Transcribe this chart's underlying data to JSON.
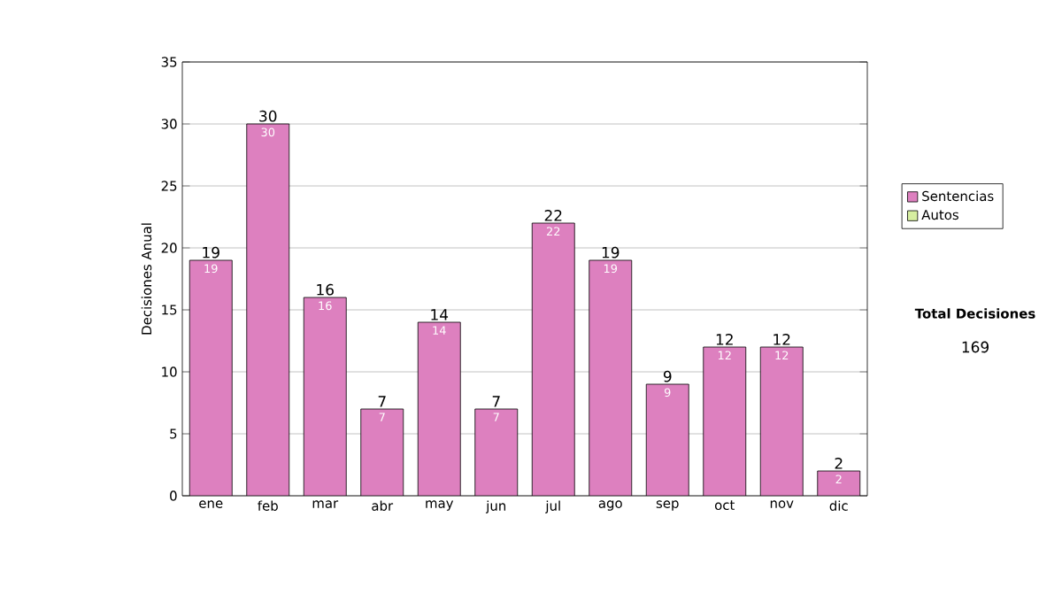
{
  "chart_data": {
    "type": "bar",
    "stacked": true,
    "ylabel": "Decisiones Anual",
    "categories": [
      "ene",
      "feb",
      "mar",
      "abr",
      "may",
      "jun",
      "jul",
      "ago",
      "sep",
      "oct",
      "nov",
      "dic"
    ],
    "series": [
      {
        "name": "Sentencias",
        "color": "#dd80bf",
        "values": [
          19,
          30,
          16,
          7,
          14,
          7,
          22,
          19,
          9,
          12,
          12,
          2
        ]
      },
      {
        "name": "Autos",
        "color": "#d6eea0",
        "values": [
          null,
          null,
          null,
          null,
          null,
          null,
          null,
          null,
          null,
          null,
          null,
          null
        ]
      }
    ],
    "totals": [
      "19",
      "30",
      "16",
      "7",
      "14",
      "7",
      "22",
      "19",
      "9",
      "12",
      "12",
      "2"
    ],
    "data_labels": true,
    "ylim": [
      0,
      35
    ],
    "yticks": [
      0,
      5,
      10,
      15,
      20,
      25,
      30,
      35
    ],
    "grid": "y",
    "legend": "right",
    "annotations": [
      "Total Decisiones",
      "169"
    ]
  }
}
